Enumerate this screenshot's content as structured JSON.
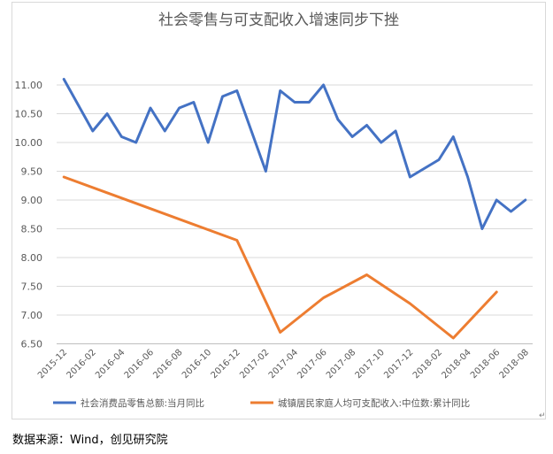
{
  "chart_data": {
    "type": "line",
    "title": "社会零售与可支配收入增速同步下挫",
    "xlabel": "",
    "ylabel": "",
    "ylim": [
      6.5,
      11.5
    ],
    "yticks": [
      "6.50",
      "7.00",
      "7.50",
      "8.00",
      "8.50",
      "9.00",
      "9.50",
      "10.00",
      "10.50",
      "11.00"
    ],
    "categories": [
      "2015-12",
      "2016-01",
      "2016-02",
      "2016-03",
      "2016-04",
      "2016-05",
      "2016-06",
      "2016-07",
      "2016-08",
      "2016-09",
      "2016-10",
      "2016-11",
      "2016-12",
      "2017-01",
      "2017-02",
      "2017-03",
      "2017-04",
      "2017-05",
      "2017-06",
      "2017-07",
      "2017-08",
      "2017-09",
      "2017-10",
      "2017-11",
      "2017-12",
      "2018-01",
      "2018-02",
      "2018-03",
      "2018-04",
      "2018-05",
      "2018-06",
      "2018-07",
      "2018-08"
    ],
    "xtick_labels": [
      "2015-12",
      "2016-02",
      "2016-04",
      "2016-06",
      "2016-08",
      "2016-10",
      "2016-12",
      "2017-02",
      "2017-04",
      "2017-06",
      "2017-08",
      "2017-10",
      "2017-12",
      "2018-02",
      "2018-04",
      "2018-06",
      "2018-08"
    ],
    "grid": true,
    "legend_position": "bottom",
    "series": [
      {
        "name": "社会消费品零售总额:当月同比",
        "color": "#4472c4",
        "values": [
          11.1,
          null,
          10.2,
          10.5,
          10.1,
          10.0,
          10.6,
          10.2,
          10.6,
          10.7,
          10.0,
          10.8,
          10.9,
          null,
          9.5,
          10.9,
          10.7,
          10.7,
          11.0,
          10.4,
          10.1,
          10.3,
          10.0,
          10.2,
          9.4,
          null,
          9.7,
          10.1,
          9.4,
          8.5,
          9.0,
          8.8,
          9.0
        ]
      },
      {
        "name": "城镇居民家庭人均可支配收入:中位数:累计同比",
        "color": "#ed7d31",
        "values": [
          9.4,
          null,
          null,
          null,
          null,
          null,
          null,
          null,
          null,
          null,
          null,
          null,
          8.3,
          null,
          null,
          6.7,
          null,
          null,
          7.3,
          null,
          null,
          7.7,
          null,
          null,
          7.2,
          null,
          null,
          6.6,
          null,
          null,
          7.4,
          null,
          null
        ]
      }
    ]
  },
  "footer": {
    "source": "数据来源：Wind，创见研究院",
    "mark": "↵"
  }
}
